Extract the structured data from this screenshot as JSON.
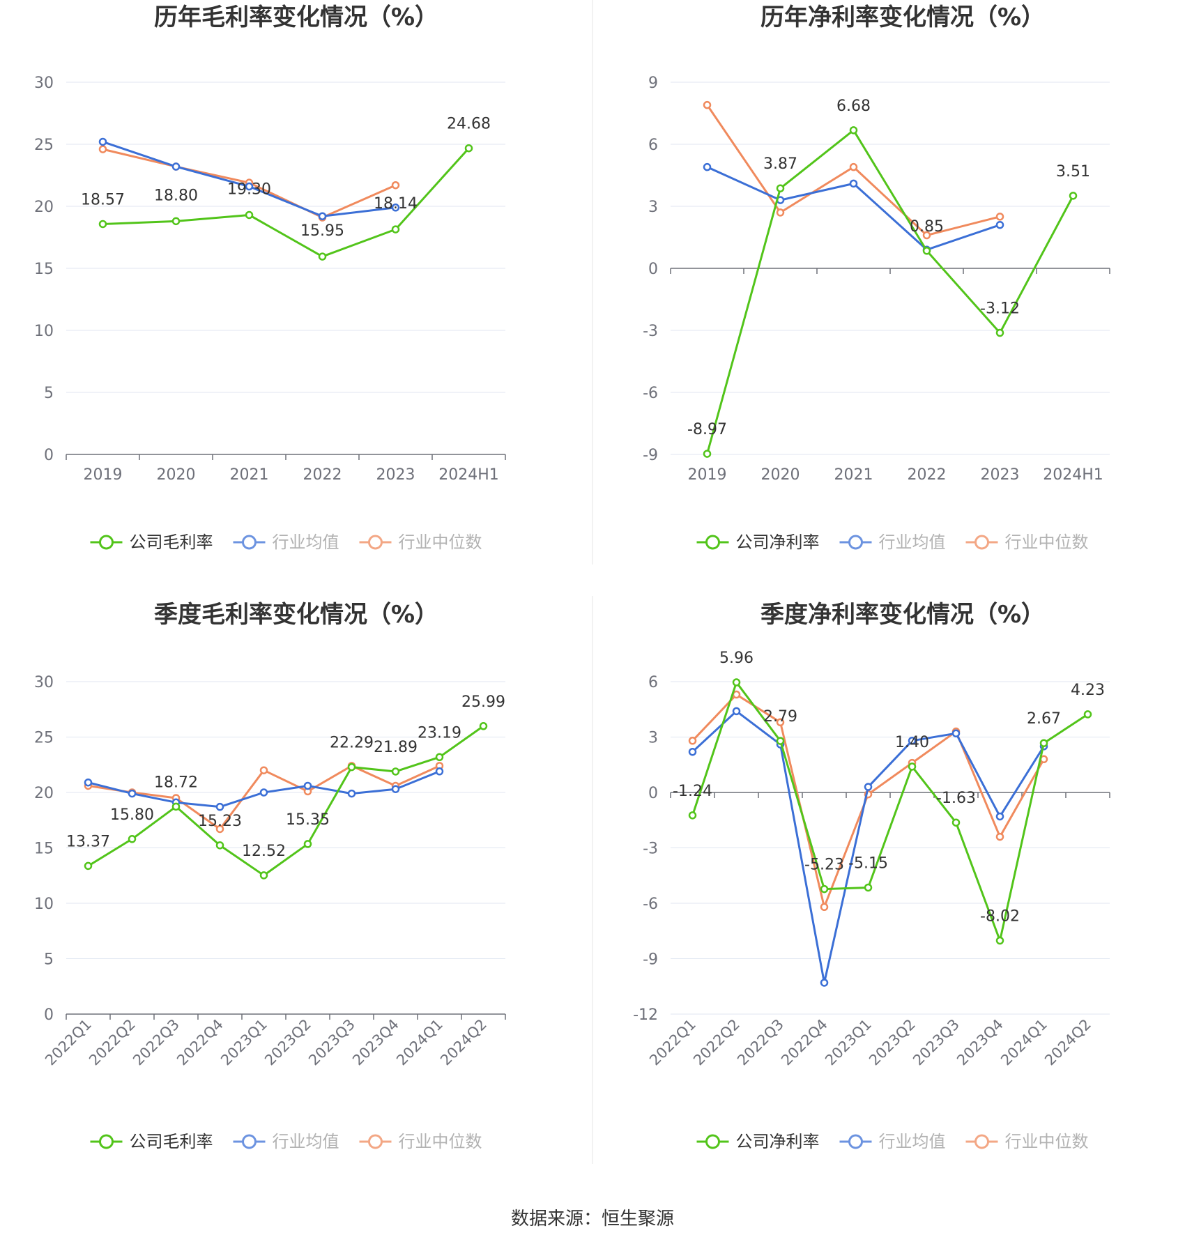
{
  "footer": {
    "source": "数据来源：恒生聚源"
  },
  "colors": {
    "company": "#52c41a",
    "avg": "#3b6fd6",
    "median": "#f08a5d"
  },
  "chart_data": [
    {
      "id": "annual-gross",
      "type": "line",
      "title": "历年毛利率变化情况（%）",
      "categories": [
        "2019",
        "2020",
        "2021",
        "2022",
        "2023",
        "2024H1"
      ],
      "ylim": [
        0,
        30
      ],
      "yticks": [
        0,
        5,
        10,
        15,
        20,
        25,
        30
      ],
      "rotate_labels": false,
      "series": [
        {
          "name": "公司毛利率",
          "key": "company",
          "values": [
            18.57,
            18.8,
            19.3,
            15.95,
            18.14,
            24.68
          ],
          "labels": [
            "18.57",
            "18.80",
            "19.30",
            "15.95",
            "18.14",
            "24.68"
          ]
        },
        {
          "name": "行业均值",
          "key": "avg",
          "values": [
            25.2,
            23.2,
            21.6,
            19.2,
            19.9,
            null
          ]
        },
        {
          "name": "行业中位数",
          "key": "median",
          "values": [
            24.6,
            23.2,
            21.9,
            19.1,
            21.7,
            null
          ]
        }
      ]
    },
    {
      "id": "annual-net",
      "type": "line",
      "title": "历年净利率变化情况（%）",
      "categories": [
        "2019",
        "2020",
        "2021",
        "2022",
        "2023",
        "2024H1"
      ],
      "ylim": [
        -9,
        9
      ],
      "yticks": [
        -9,
        -6,
        -3,
        0,
        3,
        6,
        9
      ],
      "rotate_labels": false,
      "series": [
        {
          "name": "公司净利率",
          "key": "company",
          "values": [
            -8.97,
            3.87,
            6.68,
            0.85,
            -3.12,
            3.51
          ],
          "labels": [
            "-8.97",
            "3.87",
            "6.68",
            "0.85",
            "-3.12",
            "3.51"
          ]
        },
        {
          "name": "行业均值",
          "key": "avg",
          "values": [
            4.9,
            3.3,
            4.1,
            0.9,
            2.1,
            null
          ]
        },
        {
          "name": "行业中位数",
          "key": "median",
          "values": [
            7.9,
            2.7,
            4.9,
            1.6,
            2.5,
            null
          ]
        }
      ]
    },
    {
      "id": "quarterly-gross",
      "type": "line",
      "title": "季度毛利率变化情况（%）",
      "categories": [
        "2022Q1",
        "2022Q2",
        "2022Q3",
        "2022Q4",
        "2023Q1",
        "2023Q2",
        "2023Q3",
        "2023Q4",
        "2024Q1",
        "2024Q2"
      ],
      "ylim": [
        0,
        30
      ],
      "yticks": [
        0,
        5,
        10,
        15,
        20,
        25,
        30
      ],
      "rotate_labels": true,
      "series": [
        {
          "name": "公司毛利率",
          "key": "company",
          "values": [
            13.37,
            15.8,
            18.72,
            15.23,
            12.52,
            15.35,
            22.29,
            21.89,
            23.19,
            25.99
          ],
          "labels": [
            "13.37",
            "15.80",
            "18.72",
            "15.23",
            "12.52",
            "15.35",
            "22.29",
            "21.89",
            "23.19",
            "25.99"
          ]
        },
        {
          "name": "行业均值",
          "key": "avg",
          "values": [
            20.9,
            19.9,
            19.1,
            18.7,
            20.0,
            20.6,
            19.9,
            20.3,
            21.9,
            null
          ]
        },
        {
          "name": "行业中位数",
          "key": "median",
          "values": [
            20.6,
            20.0,
            19.5,
            16.7,
            22.0,
            20.1,
            22.4,
            20.6,
            22.4,
            null
          ]
        }
      ]
    },
    {
      "id": "quarterly-net",
      "type": "line",
      "title": "季度净利率变化情况（%）",
      "categories": [
        "2022Q1",
        "2022Q2",
        "2022Q3",
        "2022Q4",
        "2023Q1",
        "2023Q2",
        "2023Q3",
        "2023Q4",
        "2024Q1",
        "2024Q2"
      ],
      "ylim": [
        -12,
        6
      ],
      "yticks": [
        -12,
        -9,
        -6,
        -3,
        0,
        3,
        6
      ],
      "rotate_labels": true,
      "series": [
        {
          "name": "公司净利率",
          "key": "company",
          "values": [
            -1.24,
            5.96,
            2.79,
            -5.23,
            -5.15,
            1.4,
            -1.63,
            -8.02,
            2.67,
            4.23
          ],
          "labels": [
            "-1.24",
            "5.96",
            "2.79",
            "-5.23",
            "-5.15",
            "1.40",
            "-1.63",
            "-8.02",
            "2.67",
            "4.23"
          ]
        },
        {
          "name": "行业均值",
          "key": "avg",
          "values": [
            2.2,
            4.4,
            2.6,
            -10.3,
            0.3,
            2.8,
            3.2,
            -1.3,
            2.5,
            null
          ]
        },
        {
          "name": "行业中位数",
          "key": "median",
          "values": [
            2.8,
            5.3,
            3.8,
            -6.2,
            -0.1,
            1.6,
            3.3,
            -2.4,
            1.8,
            null
          ]
        }
      ]
    }
  ]
}
